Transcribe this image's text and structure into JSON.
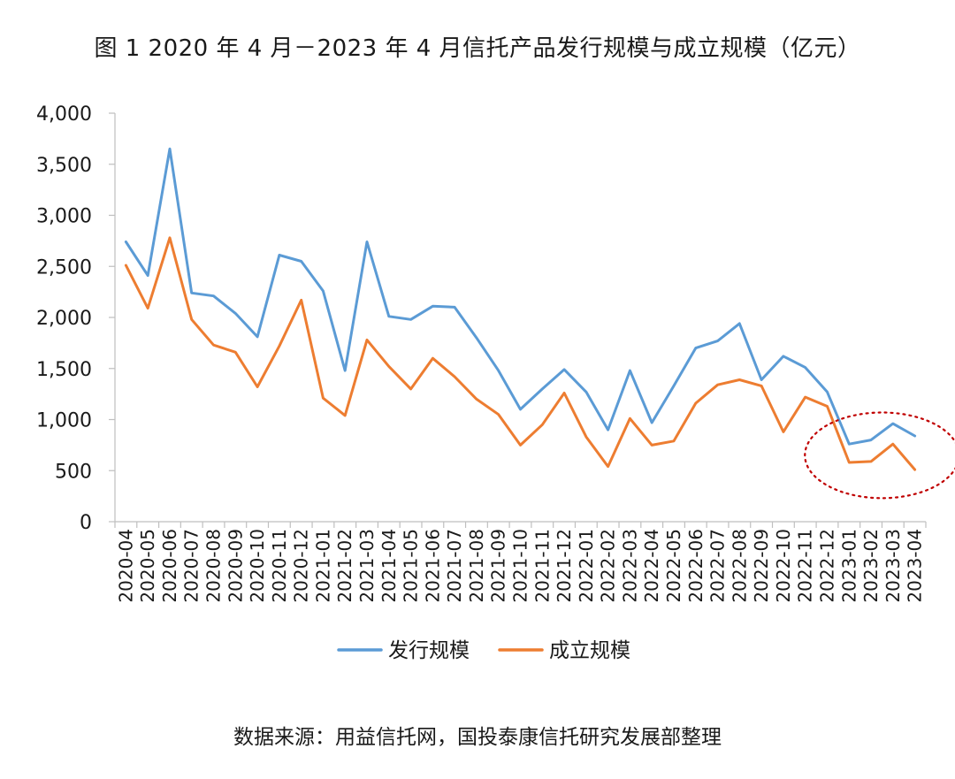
{
  "title": "图 1 2020 年 4 月－2023 年 4 月信托产品发行规模与成立规模（亿元）",
  "source": "数据来源：用益信托网，国投泰康信托研究发展部整理",
  "chart_data": {
    "type": "line",
    "categories": [
      "2020-04",
      "2020-05",
      "2020-06",
      "2020-07",
      "2020-08",
      "2020-09",
      "2020-10",
      "2020-11",
      "2020-12",
      "2021-01",
      "2021-02",
      "2021-03",
      "2021-04",
      "2021-05",
      "2021-06",
      "2021-07",
      "2021-08",
      "2021-09",
      "2021-10",
      "2021-11",
      "2021-12",
      "2022-01",
      "2022-02",
      "2022-03",
      "2022-04",
      "2022-05",
      "2022-06",
      "2022-07",
      "2022-08",
      "2022-09",
      "2022-10",
      "2022-11",
      "2022-12",
      "2023-01",
      "2023-02",
      "2023-03",
      "2023-04"
    ],
    "series": [
      {
        "name": "发行规模",
        "color": "#5b9bd5",
        "values": [
          2740,
          2410,
          3650,
          2240,
          2210,
          2040,
          1810,
          2610,
          2550,
          2260,
          1480,
          2740,
          2010,
          1980,
          2110,
          2100,
          1800,
          1480,
          1100,
          1300,
          1490,
          1270,
          900,
          1480,
          970,
          1330,
          1700,
          1770,
          1940,
          1390,
          1620,
          1510,
          1270,
          760,
          800,
          960,
          840
        ]
      },
      {
        "name": "成立规模",
        "color": "#ed7d31",
        "values": [
          2510,
          2090,
          2780,
          1980,
          1730,
          1660,
          1320,
          1720,
          2170,
          1210,
          1040,
          1780,
          1520,
          1300,
          1600,
          1420,
          1200,
          1050,
          750,
          950,
          1260,
          830,
          540,
          1010,
          750,
          790,
          1160,
          1340,
          1390,
          1330,
          880,
          1220,
          1130,
          580,
          590,
          760,
          510
        ]
      }
    ],
    "ylim": [
      0,
      4000
    ],
    "yticks": [
      0,
      500,
      1000,
      1500,
      2000,
      2500,
      3000,
      3500,
      4000
    ],
    "ytick_labels": [
      "0",
      "500",
      "1,000",
      "1,500",
      "2,000",
      "2,500",
      "3,000",
      "3,500",
      "4,000"
    ],
    "grid": false,
    "legend_position": "bottom",
    "annotation": {
      "shape": "dashed-ellipse",
      "color": "#c00000",
      "x_from": "2023-01",
      "x_to": "2023-04"
    }
  }
}
